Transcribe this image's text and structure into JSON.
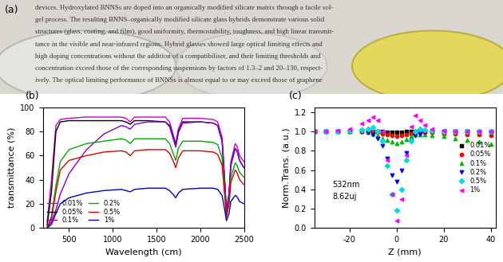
{
  "photo": {
    "label": "(a)",
    "text_lines": [
      "devices. Hydroxylated BNNSs are doped into an organically modified silicate matrix through a facile sol-",
      "gel process. The resulting BNNS–organically modified silicate glass hybrids demonstrate various solid",
      "structures (glass, coating, and film), good uniformity, thermostability, toughness, and high linear transmit-",
      "tance in the visible and near-infrared regions. Hybrid glasses showed large optical limiting effects and",
      "high doping concentrations without the addition of a compatibiliser, and their limiting thresholds and",
      "concentration exceed those of the corresponding suspensions by factors of 1.3–2 and 20–130, respect-",
      "ively. The optical limiting performance of BNNSs is almost equal to or may exceed those of graphene"
    ]
  },
  "chart_data": [
    {
      "type": "line",
      "label": "(b)",
      "x_label": "Wavelength (cm)",
      "y_label": "transmittance (%)",
      "x": [
        250,
        300,
        350,
        400,
        500,
        700,
        900,
        1100,
        1150,
        1200,
        1250,
        1400,
        1600,
        1650,
        1700,
        1720,
        1750,
        1800,
        2000,
        2150,
        2200,
        2250,
        2280,
        2300,
        2330,
        2350,
        2400,
        2420,
        2450,
        2500
      ],
      "xlim": [
        200,
        2500
      ],
      "xticks": [
        500,
        1000,
        1500,
        2000,
        2500
      ],
      "ylim": [
        0,
        100
      ],
      "yticks": [
        0,
        20,
        40,
        60,
        80,
        100
      ],
      "legend": "lower left",
      "series": [
        {
          "name": "0.01%",
          "color": "#cc00cc",
          "values": [
            5,
            40,
            85,
            90,
            91,
            92,
            92,
            92,
            91,
            88,
            92,
            92,
            92,
            88,
            75,
            70,
            82,
            91,
            91,
            90,
            88,
            75,
            40,
            15,
            30,
            55,
            70,
            68,
            60,
            55
          ]
        },
        {
          "name": "0.05%",
          "color": "#000000",
          "values": [
            2,
            30,
            80,
            88,
            89,
            89,
            89,
            89,
            88,
            86,
            89,
            89,
            88,
            85,
            73,
            68,
            80,
            88,
            88,
            87,
            85,
            72,
            38,
            12,
            28,
            52,
            66,
            64,
            56,
            50
          ]
        },
        {
          "name": "0.1%",
          "color": "#8800dd",
          "values": [
            0,
            5,
            15,
            28,
            45,
            65,
            78,
            85,
            84,
            82,
            86,
            88,
            88,
            84,
            72,
            67,
            79,
            87,
            88,
            87,
            85,
            72,
            38,
            12,
            28,
            52,
            66,
            64,
            56,
            50
          ]
        },
        {
          "name": "0.2%",
          "color": "#00aa00",
          "values": [
            0,
            10,
            35,
            55,
            65,
            70,
            72,
            74,
            73,
            70,
            74,
            74,
            74,
            70,
            60,
            56,
            66,
            72,
            72,
            71,
            69,
            58,
            30,
            10,
            22,
            42,
            54,
            52,
            46,
            42
          ]
        },
        {
          "name": "0.5%",
          "color": "#dd0000",
          "values": [
            0,
            8,
            30,
            48,
            56,
            60,
            63,
            64,
            63,
            60,
            64,
            65,
            65,
            62,
            54,
            50,
            58,
            64,
            64,
            63,
            61,
            52,
            27,
            9,
            20,
            38,
            48,
            46,
            40,
            36
          ]
        },
        {
          "name": "1%",
          "color": "#0000cc",
          "values": [
            0,
            3,
            12,
            20,
            25,
            29,
            31,
            32,
            31,
            30,
            32,
            33,
            33,
            31,
            27,
            25,
            29,
            32,
            33,
            33,
            32,
            27,
            15,
            6,
            12,
            22,
            27,
            26,
            22,
            20
          ]
        }
      ]
    },
    {
      "type": "scatter",
      "label": "(c)",
      "x_label": "Z (mm)",
      "y_label": "Norm.Trans. (a.u.)",
      "annotations": [
        "532nm",
        "8.62uj"
      ],
      "x": [
        -35,
        -30,
        -25,
        -20,
        -15,
        -12,
        -10,
        -8,
        -6,
        -4,
        -2,
        0,
        2,
        4,
        6,
        8,
        10,
        12,
        15,
        20,
        25,
        30,
        35,
        40
      ],
      "xlim": [
        -35,
        42
      ],
      "xticks": [
        -20,
        0,
        20,
        40
      ],
      "ylim": [
        0.0,
        1.25
      ],
      "yticks": [
        0.0,
        0.2,
        0.4,
        0.6,
        0.8,
        1.0,
        1.2
      ],
      "legend": "center right",
      "series": [
        {
          "name": "0.01%",
          "color": "#000000",
          "marker": "square",
          "values": [
            1.0,
            1.0,
            1.0,
            1.0,
            1.0,
            1.0,
            1.0,
            1.0,
            1.0,
            0.99,
            0.99,
            0.99,
            0.99,
            1.0,
            1.0,
            1.0,
            1.0,
            1.0,
            1.0,
            1.0,
            1.0,
            1.0,
            1.0,
            1.0
          ]
        },
        {
          "name": "0.05%",
          "color": "#ff0000",
          "marker": "circle",
          "values": [
            1.0,
            1.0,
            1.0,
            1.0,
            1.0,
            1.0,
            1.0,
            0.99,
            0.98,
            0.97,
            0.96,
            0.95,
            0.96,
            0.97,
            0.98,
            0.99,
            0.99,
            0.99,
            0.99,
            0.98,
            0.98,
            0.97,
            0.97,
            0.96
          ]
        },
        {
          "name": "0.1%",
          "color": "#00bb00",
          "marker": "triangle_up",
          "values": [
            1.0,
            1.0,
            1.0,
            1.0,
            1.0,
            0.99,
            0.98,
            0.96,
            0.93,
            0.91,
            0.89,
            0.88,
            0.89,
            0.92,
            0.95,
            0.97,
            0.97,
            0.97,
            0.96,
            0.95,
            0.93,
            0.91,
            0.89,
            0.87
          ]
        },
        {
          "name": "0.2%",
          "color": "#0000ff",
          "marker": "triangle_down",
          "values": [
            1.0,
            1.0,
            1.0,
            1.0,
            1.0,
            0.99,
            0.97,
            0.93,
            0.85,
            0.72,
            0.55,
            0.48,
            0.6,
            0.78,
            0.9,
            0.96,
            0.98,
            0.99,
            1.0,
            1.0,
            1.0,
            1.0,
            0.99,
            0.99
          ]
        },
        {
          "name": "0.5%",
          "color": "#00dddd",
          "marker": "diamond",
          "values": [
            1.0,
            1.0,
            1.0,
            1.01,
            1.02,
            1.03,
            1.04,
            1.0,
            0.9,
            0.65,
            0.35,
            0.18,
            0.4,
            0.7,
            0.9,
            1.0,
            1.03,
            1.02,
            1.01,
            1.0,
            1.0,
            1.0,
            1.0,
            1.0
          ]
        },
        {
          "name": "1%",
          "color": "#ff00ff",
          "marker": "triangle_left",
          "values": [
            1.0,
            1.0,
            1.01,
            1.03,
            1.08,
            1.12,
            1.15,
            1.12,
            1.0,
            0.7,
            0.35,
            0.08,
            0.3,
            0.75,
            1.05,
            1.17,
            1.12,
            1.07,
            1.03,
            1.01,
            1.0,
            1.0,
            1.0,
            1.0
          ]
        }
      ]
    }
  ]
}
